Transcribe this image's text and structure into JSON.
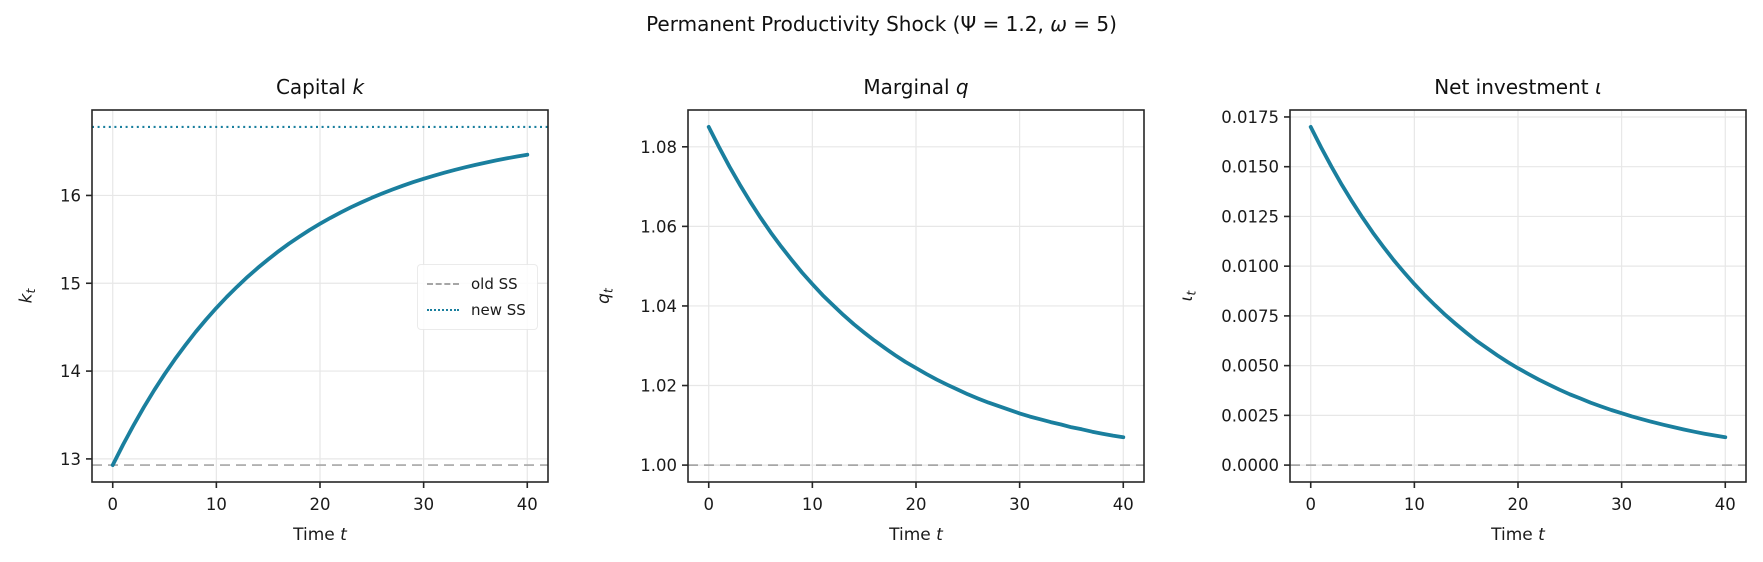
{
  "figure": {
    "suptitle_segments": [
      {
        "t": "Permanent Productivity Shock (Ψ = 1.2, "
      },
      {
        "t": "ω",
        "i": true
      },
      {
        "t": " = 5)"
      }
    ]
  },
  "colors": {
    "line": "#1a7f9e",
    "ref_dashed": "#a6a6a6",
    "ref_dotted": "#1a7f9e",
    "grid": "#e7e7e7",
    "spine": "#262626"
  },
  "chart_data": [
    {
      "type": "line",
      "title_segments": [
        {
          "t": "Capital "
        },
        {
          "t": "k",
          "i": true
        }
      ],
      "xlabel_segments": [
        {
          "t": "Time "
        },
        {
          "t": "t",
          "i": true
        }
      ],
      "ylabel": {
        "base": "k",
        "sub": "t"
      },
      "xlim": [
        -2,
        42
      ],
      "ylim": [
        12.737,
        16.973
      ],
      "xticks": [
        0,
        10,
        20,
        30,
        40
      ],
      "xtick_labels": [
        "0",
        "10",
        "20",
        "30",
        "40"
      ],
      "yticks": [
        13,
        14,
        15,
        16
      ],
      "ytick_labels": [
        "13",
        "14",
        "15",
        "16"
      ],
      "grid": true,
      "x": [
        0,
        1,
        2,
        3,
        4,
        5,
        6,
        7,
        8,
        9,
        10,
        11,
        12,
        13,
        14,
        15,
        16,
        17,
        18,
        19,
        20,
        21,
        22,
        23,
        24,
        25,
        26,
        27,
        28,
        29,
        30,
        31,
        32,
        33,
        34,
        35,
        36,
        37,
        38,
        39,
        40
      ],
      "y": [
        12.93,
        13.163,
        13.382,
        13.588,
        13.782,
        13.963,
        14.134,
        14.294,
        14.445,
        14.586,
        14.719,
        14.844,
        14.961,
        15.072,
        15.175,
        15.272,
        15.364,
        15.45,
        15.53,
        15.606,
        15.677,
        15.744,
        15.807,
        15.866,
        15.921,
        15.973,
        16.022,
        16.068,
        16.111,
        16.152,
        16.19,
        16.225,
        16.259,
        16.291,
        16.32,
        16.348,
        16.374,
        16.399,
        16.422,
        16.444,
        16.464
      ],
      "ref_lines": [
        {
          "value": 12.93,
          "style": "dashed",
          "color": "#a6a6a6",
          "label": "old SS"
        },
        {
          "value": 16.78,
          "style": "dotted",
          "color": "#1a7f9e",
          "label": "new SS"
        }
      ],
      "legend": {
        "loc": "center right",
        "items": [
          {
            "label": "old SS",
            "style": "dashed"
          },
          {
            "label": "new SS",
            "style": "dotted"
          }
        ]
      }
    },
    {
      "type": "line",
      "title_segments": [
        {
          "t": "Marginal "
        },
        {
          "t": "q",
          "i": true
        }
      ],
      "xlabel_segments": [
        {
          "t": "Time "
        },
        {
          "t": "t",
          "i": true
        }
      ],
      "ylabel": {
        "base": "q",
        "sub": "t"
      },
      "xlim": [
        -2,
        42
      ],
      "ylim": [
        0.99575,
        1.08925
      ],
      "xticks": [
        0,
        10,
        20,
        30,
        40
      ],
      "xtick_labels": [
        "0",
        "10",
        "20",
        "30",
        "40"
      ],
      "yticks": [
        1.0,
        1.02,
        1.04,
        1.06,
        1.08
      ],
      "ytick_labels": [
        "1.00",
        "1.02",
        "1.04",
        "1.06",
        "1.08"
      ],
      "grid": true,
      "x": [
        0,
        1,
        2,
        3,
        4,
        5,
        6,
        7,
        8,
        9,
        10,
        11,
        12,
        13,
        14,
        15,
        16,
        17,
        18,
        19,
        20,
        21,
        22,
        23,
        24,
        25,
        26,
        27,
        28,
        29,
        30,
        31,
        32,
        33,
        34,
        35,
        36,
        37,
        38,
        39,
        40
      ],
      "y": [
        1.085,
        1.0799,
        1.075,
        1.0705,
        1.0662,
        1.0622,
        1.0584,
        1.0549,
        1.0516,
        1.0484,
        1.0455,
        1.0427,
        1.0402,
        1.0377,
        1.0354,
        1.0333,
        1.0313,
        1.0294,
        1.0276,
        1.0259,
        1.0244,
        1.0229,
        1.0215,
        1.0202,
        1.019,
        1.0178,
        1.0167,
        1.0157,
        1.0148,
        1.0139,
        1.013,
        1.0122,
        1.0115,
        1.0108,
        1.0102,
        1.0095,
        1.009,
        1.0084,
        1.0079,
        1.0074,
        1.007
      ],
      "ref_lines": [
        {
          "value": 1.0,
          "style": "dashed",
          "color": "#a6a6a6",
          "label": ""
        }
      ]
    },
    {
      "type": "line",
      "title_segments": [
        {
          "t": "Net investment "
        },
        {
          "t": "ι",
          "i": true
        }
      ],
      "xlabel_segments": [
        {
          "t": "Time "
        },
        {
          "t": "t",
          "i": true
        }
      ],
      "ylabel": {
        "base": "ι",
        "sub": "t"
      },
      "xlim": [
        -2,
        42
      ],
      "ylim": [
        -0.00085,
        0.01785
      ],
      "xticks": [
        0,
        10,
        20,
        30,
        40
      ],
      "xtick_labels": [
        "0",
        "10",
        "20",
        "30",
        "40"
      ],
      "yticks": [
        0.0,
        0.0025,
        0.005,
        0.0075,
        0.01,
        0.0125,
        0.015,
        0.0175
      ],
      "ytick_labels": [
        "0.0000",
        "0.0025",
        "0.0050",
        "0.0075",
        "0.0100",
        "0.0125",
        "0.0150",
        "0.0175"
      ],
      "grid": true,
      "x": [
        0,
        1,
        2,
        3,
        4,
        5,
        6,
        7,
        8,
        9,
        10,
        11,
        12,
        13,
        14,
        15,
        16,
        17,
        18,
        19,
        20,
        21,
        22,
        23,
        24,
        25,
        26,
        27,
        28,
        29,
        30,
        31,
        32,
        33,
        34,
        35,
        36,
        37,
        38,
        39,
        40
      ],
      "y": [
        0.017,
        0.01597,
        0.015,
        0.01409,
        0.01324,
        0.01244,
        0.01168,
        0.01098,
        0.01031,
        0.00969,
        0.0091,
        0.00855,
        0.00803,
        0.00754,
        0.00709,
        0.00666,
        0.00625,
        0.00588,
        0.00552,
        0.00518,
        0.00487,
        0.00458,
        0.0043,
        0.00404,
        0.00379,
        0.00356,
        0.00335,
        0.00314,
        0.00295,
        0.00277,
        0.00261,
        0.00245,
        0.0023,
        0.00216,
        0.00203,
        0.00191,
        0.00179,
        0.00168,
        0.00158,
        0.00149,
        0.0014
      ],
      "ref_lines": [
        {
          "value": 0.0,
          "style": "dashed",
          "color": "#a6a6a6",
          "label": ""
        }
      ]
    }
  ]
}
